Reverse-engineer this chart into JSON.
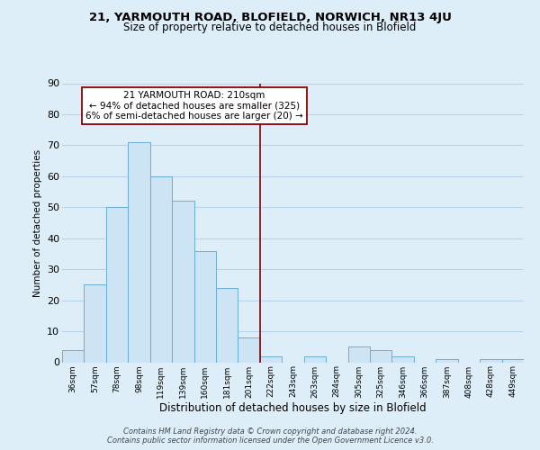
{
  "title": "21, YARMOUTH ROAD, BLOFIELD, NORWICH, NR13 4JU",
  "subtitle": "Size of property relative to detached houses in Blofield",
  "xlabel": "Distribution of detached houses by size in Blofield",
  "ylabel": "Number of detached properties",
  "bin_labels": [
    "36sqm",
    "57sqm",
    "78sqm",
    "98sqm",
    "119sqm",
    "139sqm",
    "160sqm",
    "181sqm",
    "201sqm",
    "222sqm",
    "243sqm",
    "263sqm",
    "284sqm",
    "305sqm",
    "325sqm",
    "346sqm",
    "366sqm",
    "387sqm",
    "408sqm",
    "428sqm",
    "449sqm"
  ],
  "bar_heights": [
    4,
    25,
    50,
    71,
    60,
    52,
    36,
    24,
    8,
    2,
    0,
    2,
    0,
    5,
    4,
    2,
    0,
    1,
    0,
    1,
    1
  ],
  "bar_color": "#cde4f5",
  "bar_edgecolor": "#6aaed6",
  "grid_color": "#b8d4ec",
  "background_color": "#deeef8",
  "vline_x": 8.5,
  "vline_color": "#8b0000",
  "annotation_line1": "21 YARMOUTH ROAD: 210sqm",
  "annotation_line2": "← 94% of detached houses are smaller (325)",
  "annotation_line3": "6% of semi-detached houses are larger (20) →",
  "footer_text": "Contains HM Land Registry data © Crown copyright and database right 2024.\nContains public sector information licensed under the Open Government Licence v3.0.",
  "ylim": [
    0,
    90
  ],
  "yticks": [
    0,
    10,
    20,
    30,
    40,
    50,
    60,
    70,
    80,
    90
  ]
}
